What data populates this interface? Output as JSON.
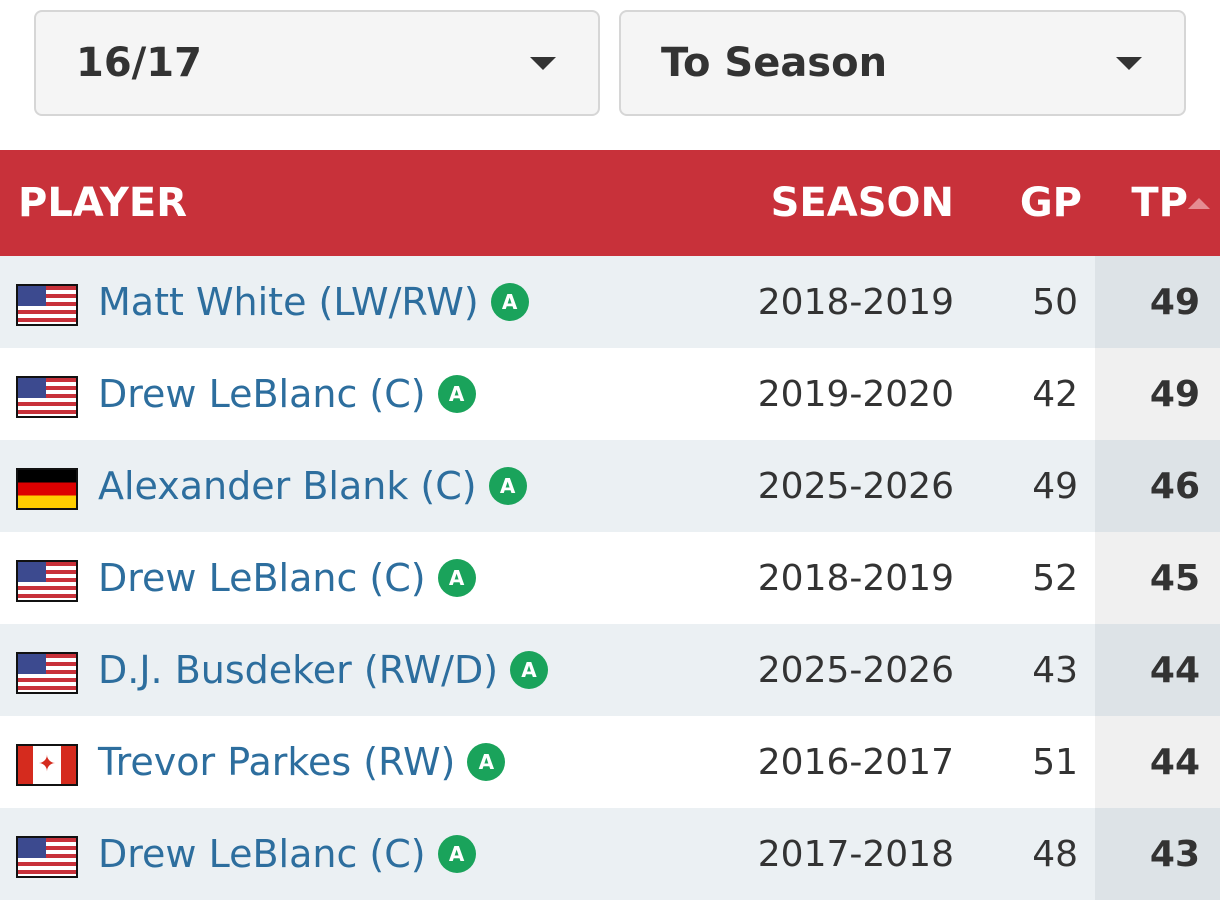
{
  "filters": {
    "season_select": "16/17",
    "scope_select": "To Season"
  },
  "table": {
    "headers": {
      "player": "PLAYER",
      "season": "SEASON",
      "gp": "GP",
      "tp": "TP"
    },
    "rows": [
      {
        "flag": "us-flag-icon",
        "player": "Matt White (LW/RW)",
        "badge": "A",
        "season": "2018-2019",
        "gp": "50",
        "tp": "49"
      },
      {
        "flag": "us-flag-icon",
        "player": "Drew LeBlanc (C)",
        "badge": "A",
        "season": "2019-2020",
        "gp": "42",
        "tp": "49"
      },
      {
        "flag": "germany-flag-icon",
        "player": "Alexander Blank (C)",
        "badge": "A",
        "season": "2025-2026",
        "gp": "49",
        "tp": "46"
      },
      {
        "flag": "us-flag-icon",
        "player": "Drew LeBlanc (C)",
        "badge": "A",
        "season": "2018-2019",
        "gp": "52",
        "tp": "45"
      },
      {
        "flag": "us-flag-icon",
        "player": "D.J. Busdeker (RW/D)",
        "badge": "A",
        "season": "2025-2026",
        "gp": "43",
        "tp": "44"
      },
      {
        "flag": "canada-flag-icon",
        "player": "Trevor Parkes (RW)",
        "badge": "A",
        "season": "2016-2017",
        "gp": "51",
        "tp": "44"
      },
      {
        "flag": "us-flag-icon",
        "player": "Drew LeBlanc (C)",
        "badge": "A",
        "season": "2017-2018",
        "gp": "48",
        "tp": "43"
      }
    ]
  }
}
